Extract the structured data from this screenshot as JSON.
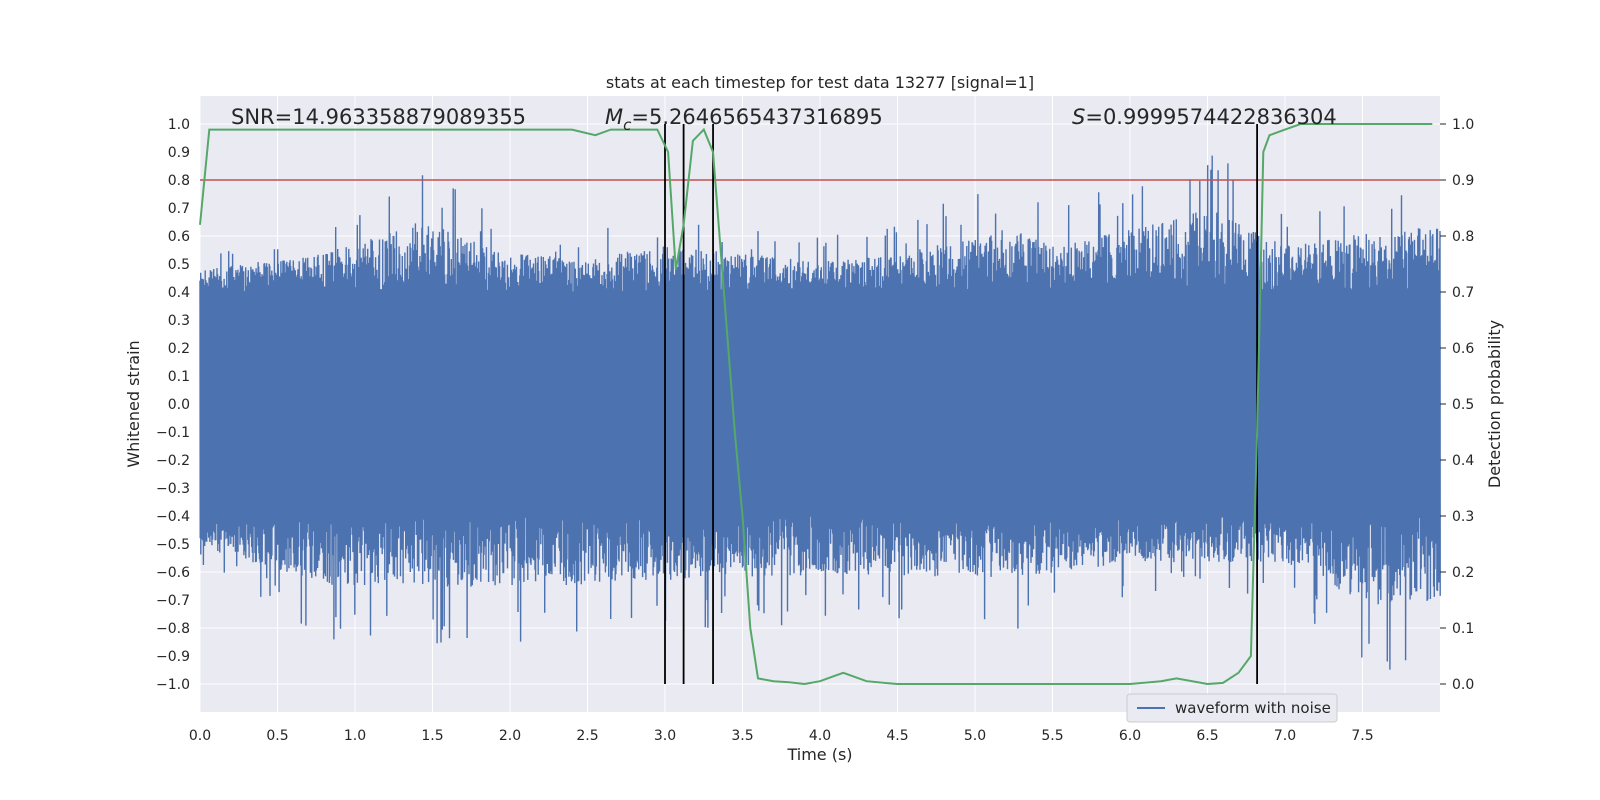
{
  "chart_data": {
    "type": "line",
    "title": "stats at each timestep for test data 13277 [signal=1]",
    "xlabel": "Time (s)",
    "ylabel": "Whitened strain",
    "y2label": "Detection probability",
    "xlim": [
      0.0,
      8.0
    ],
    "ylim": [
      -1.1,
      1.1
    ],
    "y2lim": [
      -0.05,
      1.05
    ],
    "xticks": [
      0.0,
      0.5,
      1.0,
      1.5,
      2.0,
      2.5,
      3.0,
      3.5,
      4.0,
      4.5,
      5.0,
      5.5,
      6.0,
      6.5,
      7.0,
      7.5
    ],
    "yticks": [
      -1.0,
      -0.9,
      -0.8,
      -0.7,
      -0.6,
      -0.5,
      -0.4,
      -0.3,
      -0.2,
      -0.1,
      0.0,
      0.1,
      0.2,
      0.3,
      0.4,
      0.5,
      0.6,
      0.7,
      0.8,
      0.9,
      1.0
    ],
    "y2ticks": [
      0.0,
      0.1,
      0.2,
      0.3,
      0.4,
      0.5,
      0.6,
      0.7,
      0.8,
      0.9,
      1.0
    ],
    "grid": true,
    "legend": {
      "location": "lower right",
      "entries": [
        "waveform with noise"
      ]
    },
    "annotations": {
      "snr": "SNR=14.963358879089355",
      "mc_symbol": "M",
      "mc_subscript": "c",
      "mc_value": "=5.2646565437316895",
      "s_symbol": "S",
      "s_value": "=0.9999574422836304"
    },
    "threshold_line": {
      "value": 0.9,
      "axis": "y2",
      "color": "#c44e52"
    },
    "vertical_lines": [
      3.0,
      3.12,
      3.31,
      6.82
    ],
    "series": [
      {
        "name": "waveform with noise",
        "axis": "y",
        "color": "#4c72b0",
        "description": "whitened noisy strain, approx. symmetric envelope",
        "envelope_core": 0.4,
        "envelope_peak": [
          [
            0.0,
            0.55
          ],
          [
            0.5,
            0.6
          ],
          [
            0.8,
            0.65
          ],
          [
            1.43,
            0.86
          ],
          [
            2.0,
            0.65
          ],
          [
            2.5,
            0.62
          ],
          [
            3.0,
            0.7
          ],
          [
            3.5,
            0.65
          ],
          [
            4.0,
            0.6
          ],
          [
            4.5,
            0.65
          ],
          [
            5.25,
            0.82
          ],
          [
            5.5,
            0.7
          ],
          [
            6.2,
            0.85
          ],
          [
            6.5,
            0.95
          ],
          [
            7.0,
            0.7
          ],
          [
            7.7,
            0.82
          ]
        ],
        "min_peak": [
          [
            0.0,
            -0.6
          ],
          [
            0.85,
            -0.86
          ],
          [
            2.02,
            -0.86
          ],
          [
            2.9,
            -0.83
          ],
          [
            3.5,
            -0.8
          ],
          [
            4.18,
            -0.78
          ],
          [
            5.23,
            -0.81
          ],
          [
            6.0,
            -0.7
          ],
          [
            7.0,
            -0.7
          ],
          [
            7.55,
            -0.98
          ],
          [
            7.78,
            -0.96
          ]
        ]
      },
      {
        "name": "detection probability",
        "axis": "y2",
        "color": "#55a868",
        "x": [
          0.0,
          0.06,
          0.15,
          0.5,
          1.0,
          1.5,
          2.0,
          2.4,
          2.55,
          2.65,
          2.8,
          2.95,
          3.02,
          3.07,
          3.12,
          3.18,
          3.25,
          3.31,
          3.38,
          3.45,
          3.5,
          3.55,
          3.6,
          3.7,
          3.8,
          3.9,
          4.0,
          4.1,
          4.15,
          4.2,
          4.3,
          4.5,
          5.0,
          5.5,
          6.0,
          6.2,
          6.3,
          6.5,
          6.6,
          6.7,
          6.78,
          6.82,
          6.86,
          6.9,
          7.0,
          7.1,
          7.5,
          7.95
        ],
        "y": [
          0.82,
          0.99,
          0.99,
          0.99,
          0.99,
          0.99,
          0.99,
          0.99,
          0.98,
          0.99,
          0.99,
          0.99,
          0.95,
          0.74,
          0.82,
          0.97,
          0.99,
          0.95,
          0.7,
          0.45,
          0.3,
          0.1,
          0.01,
          0.005,
          0.003,
          0.0,
          0.005,
          0.015,
          0.02,
          0.015,
          0.005,
          0.0,
          0.0,
          0.0,
          0.0,
          0.005,
          0.01,
          0.0,
          0.002,
          0.02,
          0.05,
          0.45,
          0.95,
          0.98,
          0.99,
          1.0,
          1.0,
          1.0
        ]
      }
    ]
  }
}
